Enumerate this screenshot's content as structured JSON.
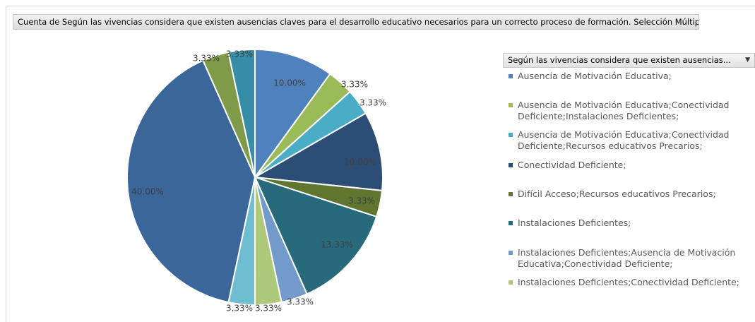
{
  "chart_data": {
    "type": "pie",
    "title": "Cuenta de Según las vivencias considera que existen ausencias claves para el desarrollo educativo necesarios para un correcto proceso de formación. Selección Múltiple",
    "legend_position": "right",
    "legend_field": "Según las vivencias considera que existen ausencias...",
    "slices": [
      {
        "label": "Ausencia de Motivación Educativa;",
        "value": 10.0,
        "display": "10.00%",
        "color": "#4f81bd",
        "label_color": "#404040"
      },
      {
        "label": "Ausencia de Motivación Educativa;Conectividad Deficiente;Instalaciones Deficientes;",
        "value": 3.33,
        "display": "3.33%",
        "color": "#9bbb59",
        "label_color": "#404040"
      },
      {
        "label": "Ausencia de Motivación Educativa;Conectividad Deficiente;Recursos educativos Precarios;",
        "value": 3.33,
        "display": "3.33%",
        "color": "#4bacc6",
        "label_color": "#404040"
      },
      {
        "label": "Conectividad Deficiente;",
        "value": 10.0,
        "display": "10.00%",
        "color": "#2c4d75",
        "label_color": "#404040"
      },
      {
        "label": "Difícil Acceso;Recursos educativos Precarios;",
        "value": 3.33,
        "display": "3.33%",
        "color": "#5f7530",
        "label_color": "#404040"
      },
      {
        "label": "Instalaciones Deficientes;",
        "value": 13.33,
        "display": "13.33%",
        "color": "#276a7c",
        "label_color": "#404040"
      },
      {
        "label": "Instalaciones Deficientes;Ausencia de Motivación Educativa;Conectividad Deficiente;",
        "value": 3.33,
        "display": "3.33%",
        "color": "#729aca",
        "label_color": "#404040"
      },
      {
        "label": "Instalaciones Deficientes;Conectividad Deficiente;",
        "value": 3.33,
        "display": "3.33%",
        "color": "#afc97a",
        "label_color": "#404040"
      },
      {
        "label": "",
        "value": 3.33,
        "display": "3.33%",
        "color": "#6fbdd1",
        "label_color": "#404040"
      },
      {
        "label": "",
        "value": 40.0,
        "display": "40.00%",
        "color": "#3a6699",
        "label_color": "#404040"
      },
      {
        "label": "",
        "value": 3.33,
        "display": "3.33%",
        "color": "#7f9a48",
        "label_color": "#404040"
      },
      {
        "label": "",
        "value": 3.33,
        "display": "3.33%",
        "color": "#358ea6",
        "label_color": "#404040"
      }
    ]
  }
}
